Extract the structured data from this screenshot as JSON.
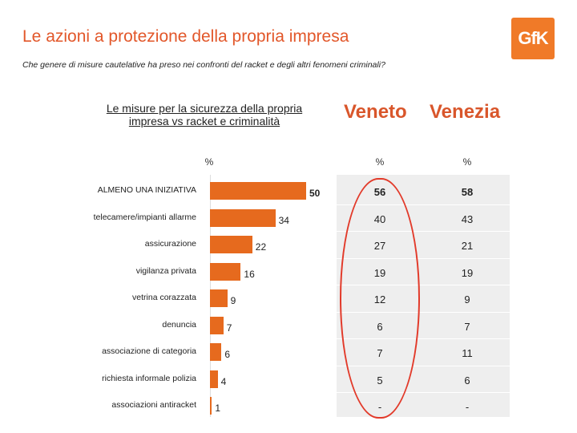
{
  "header": {
    "title": "Le azioni a protezione della  propria impresa",
    "subtitle": "Che genere di misure cautelative ha preso nei confronti del racket e degli altri fenomeni  criminali?",
    "logo_text": "GfK"
  },
  "chart_data": {
    "type": "bar",
    "orientation": "horizontal",
    "title": "Le misure per la sicurezza della propria impresa vs racket e criminalità",
    "unit_label": "%",
    "categories": [
      "ALMENO UNA INIZIATIVA",
      "telecamere/impianti allarme",
      "assicurazione",
      "vigilanza privata",
      "vetrina corazzata",
      "denuncia",
      "associazione di categoria",
      "richiesta informale polizia",
      "associazioni antiracket"
    ],
    "values": [
      50,
      34,
      22,
      16,
      9,
      7,
      6,
      4,
      1
    ],
    "xlim": [
      0,
      50
    ],
    "colors": {
      "bar": "#e66a1e",
      "accent": "#d9562b",
      "circle": "#e23a2a"
    }
  },
  "table": {
    "columns": [
      {
        "header": "Veneto",
        "unit": "%",
        "values": [
          "56",
          "40",
          "27",
          "19",
          "12",
          "6",
          "7",
          "5",
          "-"
        ]
      },
      {
        "header": "Venezia",
        "unit": "%",
        "values": [
          "58",
          "43",
          "21",
          "19",
          "9",
          "7",
          "11",
          "6",
          "-"
        ]
      }
    ]
  }
}
